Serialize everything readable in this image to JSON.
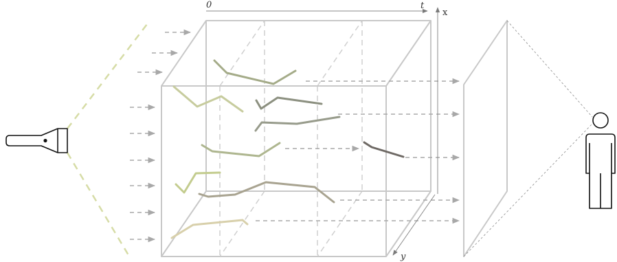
{
  "labels": {
    "time_origin": "0",
    "time_end": "t",
    "axis_x": "x",
    "axis_y": "y"
  },
  "icons": {
    "light_source": "flashlight-icon",
    "observer": "person-icon"
  },
  "colors": {
    "cube_edge": "#c8c8c8",
    "cube_hidden_edge": "#cfcfcf",
    "ray_arrow": "#b0b0b0",
    "light_cone": "#d6dca6",
    "screen": "#c8c8c8",
    "view_lines": "#8a8a8a",
    "icon_stroke": "#111111",
    "axis": "#888888"
  }
}
